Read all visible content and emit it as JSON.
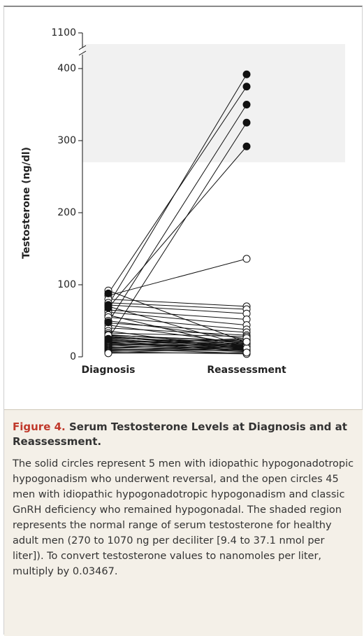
{
  "chart_data": {
    "type": "paired-dot",
    "ylabel": "Testosterone (ng/dl)",
    "categories": [
      "Diagnosis",
      "Reassessment"
    ],
    "ylim": [
      0,
      1100
    ],
    "yticks": [
      0,
      100,
      200,
      300,
      400,
      1100
    ],
    "axis_break": true,
    "shaded_range": [
      270,
      1070
    ],
    "shade_color": "#f1f1f1",
    "marker_color": "#111111",
    "groups": [
      {
        "filled": true,
        "diagnosis": [
          72,
          88,
          48,
          25,
          68
        ],
        "reassessment": [
          392,
          375,
          350,
          325,
          292
        ]
      },
      {
        "filled": false,
        "diagnosis": [
          92,
          85,
          80,
          75,
          72,
          70,
          65,
          62,
          58,
          55,
          50,
          47,
          44,
          40,
          36,
          33,
          31,
          30,
          29,
          28,
          27,
          26,
          25,
          24,
          23,
          22,
          21,
          20,
          20,
          19,
          18,
          17,
          16,
          15,
          14,
          13,
          12,
          11,
          10,
          9,
          8,
          7,
          6,
          5,
          30
        ],
        "reassessment": [
          20,
          136,
          70,
          66,
          60,
          15,
          52,
          44,
          12,
          38,
          25,
          34,
          18,
          30,
          10,
          28,
          17,
          22,
          14,
          12,
          16,
          20,
          13,
          11,
          15,
          9,
          19,
          24,
          8,
          14,
          12,
          16,
          10,
          26,
          7,
          18,
          13,
          5,
          11,
          9,
          15,
          4,
          12,
          6,
          21
        ]
      }
    ]
  },
  "caption": {
    "label": "Figure 4.",
    "title": "Serum Testosterone Levels at Diagnosis and at Reassessment.",
    "text": "The solid circles represent 5 men with idiopathic hypogonadotropic hypogonadism who underwent reversal, and the open circles 45 men with idiopathic hypogonadotropic hypogonadism and classic GnRH deficiency who remained hypogonadal. The shaded region represents the normal range of serum testosterone for healthy adult men (270 to 1070 ng per deciliter [9.4 to 37.1 nmol per liter]). To convert testosterone values to nanomoles per liter, multiply by 0.03467."
  }
}
